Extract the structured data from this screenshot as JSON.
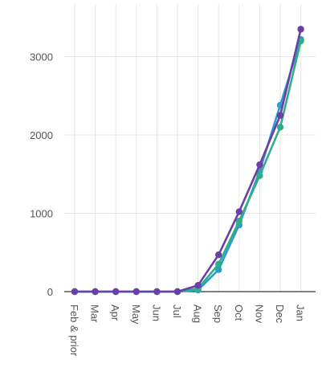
{
  "chart_data": {
    "type": "line",
    "title": "",
    "xlabel": "",
    "ylabel": "",
    "categories": [
      "Feb & prior",
      "Mar",
      "Apr",
      "May",
      "Jun",
      "Jul",
      "Aug",
      "Sep",
      "Oct",
      "Nov",
      "Dec",
      "Jan"
    ],
    "ylim": [
      0,
      3500
    ],
    "yticks": [
      0,
      1000,
      2000,
      3000
    ],
    "grid": true,
    "legend": "none",
    "series": [
      {
        "color": "#2e9bd0",
        "values": [
          0,
          0,
          0,
          0,
          0,
          0,
          20,
          280,
          850,
          1540,
          2380,
          3220
        ]
      },
      {
        "color": "#2fae88",
        "values": [
          0,
          0,
          0,
          0,
          0,
          0,
          40,
          350,
          900,
          1480,
          2100,
          3200
        ]
      },
      {
        "color": "#6a3fa6",
        "values": [
          0,
          0,
          0,
          0,
          0,
          0,
          80,
          470,
          1020,
          1620,
          2250,
          3350
        ]
      }
    ]
  }
}
